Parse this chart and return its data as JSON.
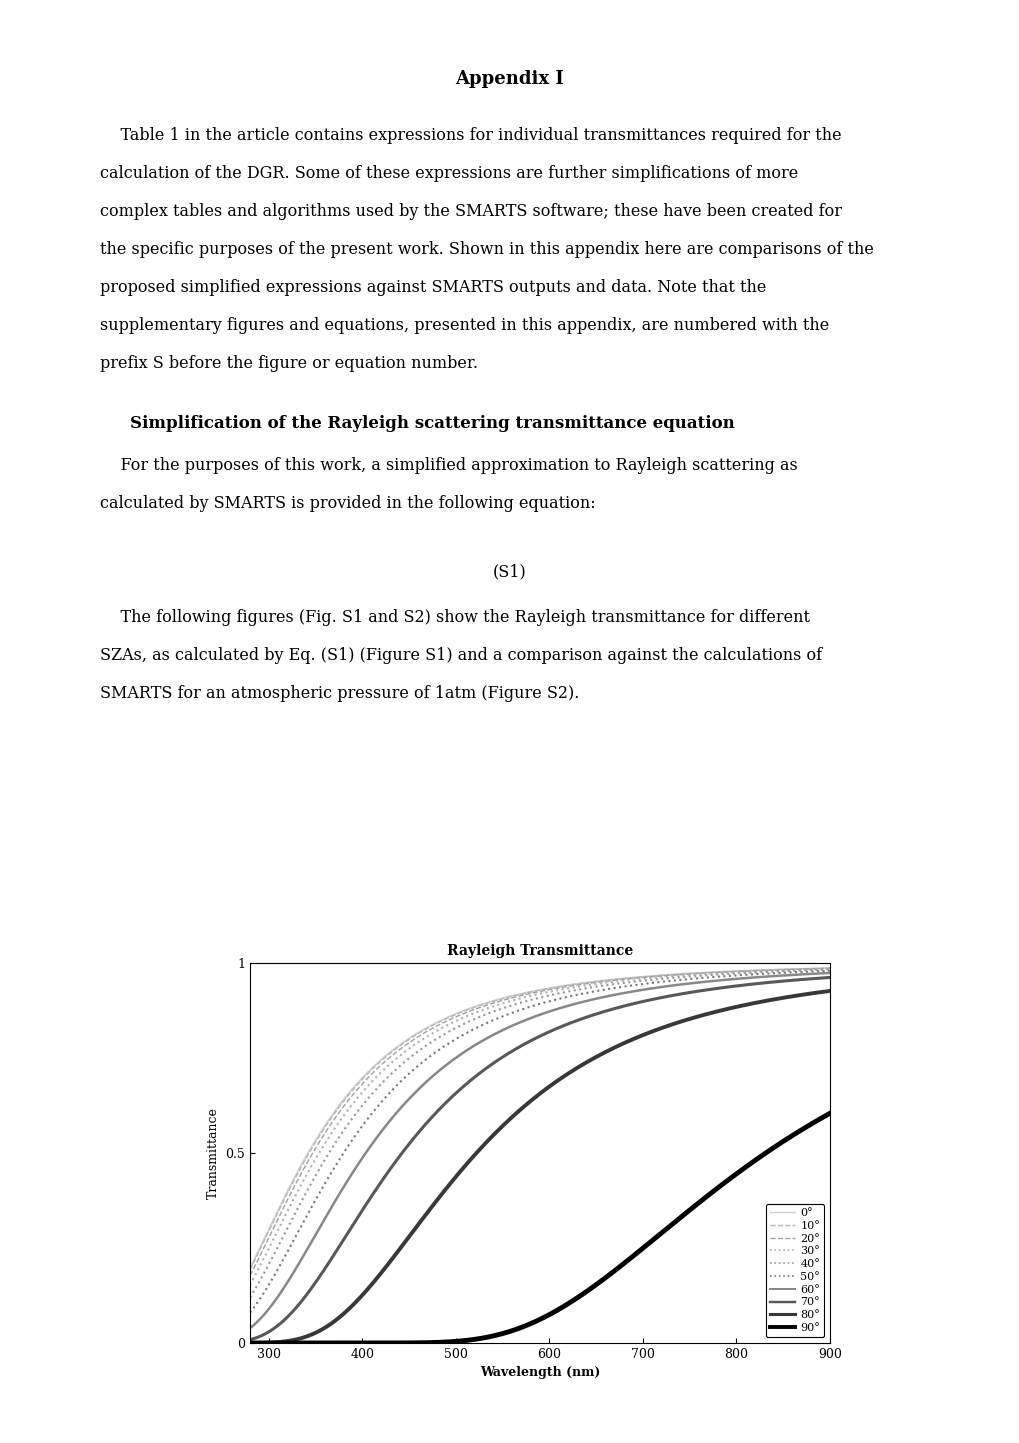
{
  "title": "Appendix I",
  "section_title": "Simplification of the Rayleigh scattering transmittance equation",
  "para1_lines": [
    "    Table 1 in the article contains expressions for individual transmittances required for the",
    "calculation of the DGR. Some of these expressions are further simplifications of more",
    "complex tables and algorithms used by the SMARTS software; these have been created for",
    "the specific purposes of the present work. Shown in this appendix here are comparisons of the",
    "proposed simplified expressions against SMARTS outputs and data. Note that the",
    "supplementary figures and equations, presented in this appendix, are numbered with the",
    "prefix S before the figure or equation number."
  ],
  "para2_lines": [
    "    For the purposes of this work, a simplified approximation to Rayleigh scattering as",
    "calculated by SMARTS is provided in the following equation:"
  ],
  "equation_label": "(S1)",
  "para3_lines": [
    "    The following figures (Fig. S1 and S2) show the Rayleigh transmittance for different",
    "SZAs, as calculated by Eq. (S1) (Figure S1) and a comparison against the calculations of",
    "SMARTS for an atmospheric pressure of 1atm (Figure S2)."
  ],
  "chart_title": "Rayleigh Transmittance",
  "xlabel": "Wavelength (nm)",
  "ylabel": "Transmittance",
  "xlim": [
    280,
    900
  ],
  "ylim": [
    0,
    1
  ],
  "xticks": [
    300,
    400,
    500,
    600,
    700,
    800,
    900
  ],
  "yticks": [
    0,
    0.5,
    1
  ],
  "ytick_labels": [
    "0",
    "0.5",
    "1"
  ],
  "angles": [
    0,
    10,
    20,
    30,
    40,
    50,
    60,
    70,
    80,
    90
  ],
  "line_styles": [
    "-",
    "--",
    "--",
    ":",
    ":",
    ":",
    "-",
    "-",
    "-",
    "-"
  ],
  "line_colors": [
    "#d0d0d0",
    "#b8b8b8",
    "#a0a0a0",
    "#b0b0b0",
    "#989898",
    "#787878",
    "#888888",
    "#585858",
    "#383838",
    "#000000"
  ],
  "line_widths": [
    1.2,
    1.0,
    1.0,
    1.5,
    1.5,
    1.5,
    1.8,
    2.2,
    2.8,
    3.5
  ],
  "legend_colors": [
    "#d0d0d0",
    "#b8b8b8",
    "#a0a0a0",
    "#b0b0b0",
    "#989898",
    "#787878",
    "#888888",
    "#585858",
    "#383838",
    "#000000"
  ],
  "background_color": "#ffffff",
  "page_width": 10.2,
  "page_height": 14.43,
  "dpi": 100,
  "text_fontsize": 11.5,
  "title_fontsize": 13,
  "section_fontsize": 12,
  "chart_title_fontsize": 10,
  "chart_label_fontsize": 9,
  "chart_tick_fontsize": 9,
  "legend_fontsize": 8
}
